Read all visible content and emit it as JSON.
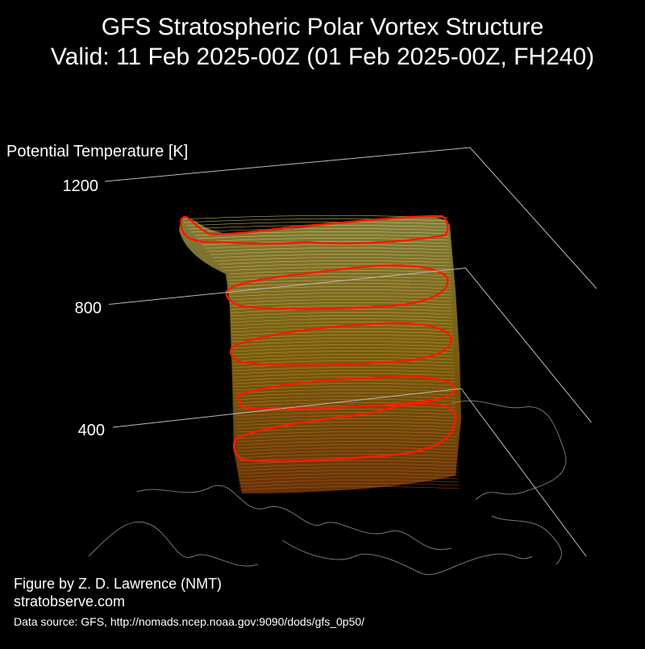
{
  "chart_data": {
    "type": "vortex3d",
    "title": "GFS Stratospheric Polar Vortex Structure",
    "subtitle": "Valid: 11 Feb 2025-00Z  (01 Feb 2025-00Z, FH240)",
    "y_label": "Potential Temperature [K]",
    "ylim": [
      400,
      1200
    ],
    "yticks": [
      400,
      800,
      1200
    ],
    "grid": true,
    "credit": "Figure by Z. D. Lawrence (NMT)",
    "website": "stratobserve.com",
    "source": "Data source: GFS, http://nomads.ncep.noaa.gov:9090/dods/gfs_0p50/"
  }
}
